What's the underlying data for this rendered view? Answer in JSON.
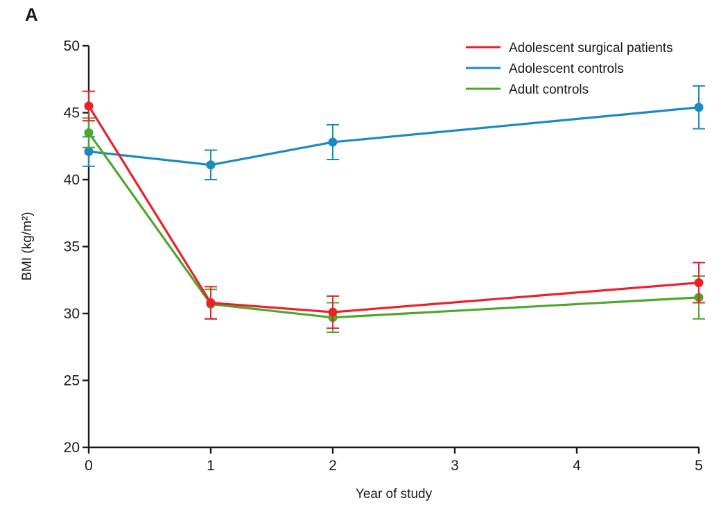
{
  "chart_data": {
    "type": "line",
    "panel_label": "A",
    "xlabel": "Year of study",
    "ylabel": "BMI (kg/m²)",
    "x": [
      0,
      1,
      2,
      3,
      4,
      5
    ],
    "x_tick_labels": [
      "0",
      "1",
      "2",
      "3",
      "4",
      "5"
    ],
    "xlim": [
      0,
      5
    ],
    "y_ticks": [
      20,
      25,
      30,
      35,
      40,
      45,
      50
    ],
    "y_tick_labels": [
      "20",
      "25",
      "30",
      "35",
      "40",
      "45",
      "50"
    ],
    "ylim": [
      20,
      50
    ],
    "grid": false,
    "legend_position": "top-right",
    "series": [
      {
        "name": "Adolescent surgical patients",
        "color": "#e8212b",
        "points": [
          {
            "x": 0,
            "y": 45.5,
            "err_low": 44.4,
            "err_high": 46.6
          },
          {
            "x": 1,
            "y": 30.8,
            "err_low": 29.6,
            "err_high": 32.0
          },
          {
            "x": 2,
            "y": 30.1,
            "err_low": 28.9,
            "err_high": 31.3
          },
          {
            "x": 5,
            "y": 32.3,
            "err_low": 30.8,
            "err_high": 33.8
          }
        ]
      },
      {
        "name": "Adolescent controls",
        "color": "#1b8ac3",
        "points": [
          {
            "x": 0,
            "y": 42.1,
            "err_low": 41.0,
            "err_high": 43.2
          },
          {
            "x": 1,
            "y": 41.1,
            "err_low": 40.0,
            "err_high": 42.2
          },
          {
            "x": 2,
            "y": 42.8,
            "err_low": 41.5,
            "err_high": 44.1
          },
          {
            "x": 5,
            "y": 45.4,
            "err_low": 43.8,
            "err_high": 47.0
          }
        ]
      },
      {
        "name": "Adult controls",
        "color": "#4da829",
        "points": [
          {
            "x": 0,
            "y": 43.5,
            "err_low": 42.4,
            "err_high": 44.6
          },
          {
            "x": 1,
            "y": 30.7,
            "err_low": 29.6,
            "err_high": 31.8
          },
          {
            "x": 2,
            "y": 29.7,
            "err_low": 28.6,
            "err_high": 30.8
          },
          {
            "x": 5,
            "y": 31.2,
            "err_low": 29.6,
            "err_high": 32.8
          }
        ]
      }
    ]
  }
}
